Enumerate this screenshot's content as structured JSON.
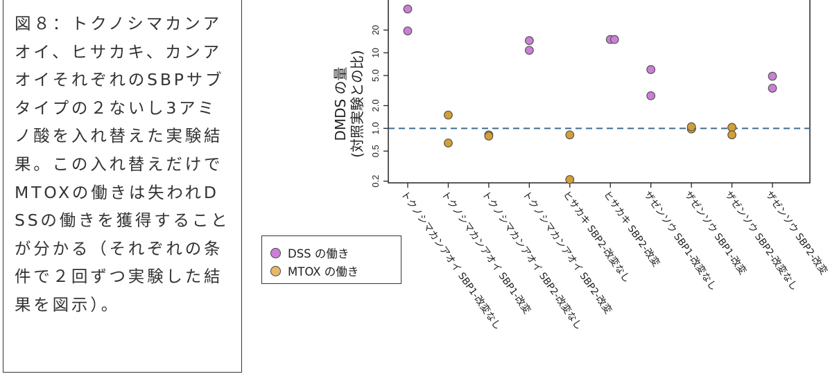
{
  "caption": "図８：トクノシマカンアオイ、ヒサカキ、カンアオイそれぞれのSBPサブタイプの２ないし3アミノ酸を入れ替えた実験結果。この入れ替えだけでMTOXの働きは失われDSSの働きを獲得することが分かる（それぞれの条件で２回ずつ実験した結果を図示）。",
  "chart_data": {
    "type": "scatter",
    "ylabel": [
      "DMDS の量",
      "(対照実験との比)"
    ],
    "y_scale": "log",
    "yticks": [
      0.2,
      0.5,
      1.0,
      2.0,
      5.0,
      10,
      20
    ],
    "ytick_labels": [
      "0.2",
      "0.5",
      "1.0",
      "2.0",
      "5.0",
      "10",
      "20"
    ],
    "ylim": [
      0.19,
      50
    ],
    "reference_line": 1.0,
    "categories": [
      "トクノシマカンアオイ SBP1-改変なし",
      "トクノシマカンアオイ SBP1-改変",
      "トクノシマカンアオイ SBP2-改変なし",
      "トクノシマカンアオイ SBP2-改変",
      "ヒサカキ SBP2-改変なし",
      "ヒサカキ SBP2-改変",
      "ザゼンソウ SBP1-改変なし",
      "ザゼンソウ SBP1-改変",
      "ザゼンソウ SBP2-改変なし",
      "ザゼンソウ SBP2-改変"
    ],
    "series": [
      {
        "name": "DSS の働き",
        "color": "#cc7fd6",
        "points": [
          {
            "x": 0,
            "y": 38
          },
          {
            "x": 0,
            "y": 19.5
          },
          {
            "x": 3,
            "y": 14.5
          },
          {
            "x": 3,
            "y": 10.8
          },
          {
            "x": 5,
            "y": 15
          },
          {
            "x": 5,
            "y": 15
          },
          {
            "x": 6,
            "y": 6.0
          },
          {
            "x": 6,
            "y": 2.7
          },
          {
            "x": 9,
            "y": 4.9
          },
          {
            "x": 9,
            "y": 3.4
          }
        ]
      },
      {
        "name": "MTOX の働き",
        "color": "#d4a034",
        "points": [
          {
            "x": 1,
            "y": 1.5
          },
          {
            "x": 1,
            "y": 0.64
          },
          {
            "x": 2,
            "y": 0.82
          },
          {
            "x": 2,
            "y": 0.79
          },
          {
            "x": 4,
            "y": 0.82
          },
          {
            "x": 4,
            "y": 0.21
          },
          {
            "x": 7,
            "y": 0.98
          },
          {
            "x": 7,
            "y": 1.05
          },
          {
            "x": 8,
            "y": 1.03
          },
          {
            "x": 8,
            "y": 0.82
          }
        ]
      }
    ],
    "legend": [
      {
        "label": "DSS の働き",
        "color": "#cc7fd6"
      },
      {
        "label": "MTOX の働き",
        "color": "#e8b86a"
      }
    ]
  }
}
